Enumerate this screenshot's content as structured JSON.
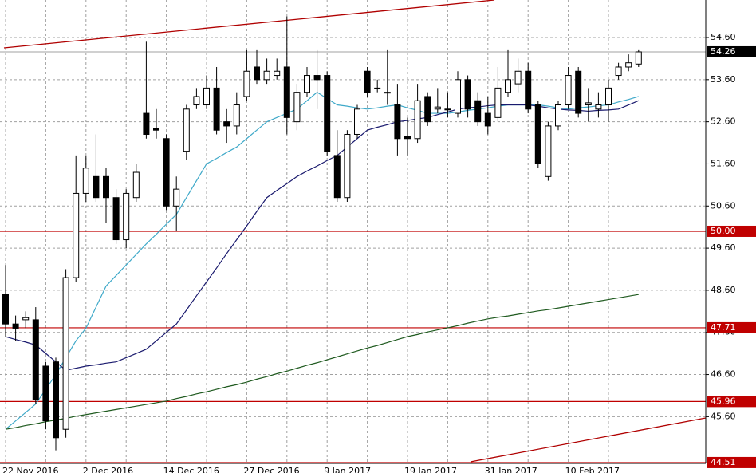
{
  "chart_data": {
    "type": "candlestick",
    "categories": [
      "22 Nov 2016",
      null,
      null,
      null,
      null,
      null,
      null,
      null,
      "2 Dec 2016",
      null,
      null,
      null,
      null,
      null,
      null,
      null,
      "14 Dec 2016",
      null,
      null,
      null,
      null,
      null,
      null,
      null,
      "27 Dec 2016",
      null,
      null,
      null,
      null,
      null,
      null,
      null,
      "9 Jan 2017",
      null,
      null,
      null,
      null,
      null,
      null,
      null,
      "19 Jan 2017",
      null,
      null,
      null,
      null,
      null,
      null,
      null,
      "31 Jan 2017",
      null,
      null,
      null,
      null,
      null,
      null,
      null,
      "10 Feb 2017",
      null,
      null,
      null,
      null,
      null,
      null,
      null
    ],
    "open": [
      48.5,
      47.8,
      47.9,
      47.9,
      46.8,
      46.9,
      45.3,
      48.9,
      50.9,
      51.3,
      51.3,
      50.8,
      49.8,
      50.8,
      52.8,
      52.45,
      52.2,
      50.6,
      51.9,
      53.0,
      53.0,
      53.4,
      52.6,
      52.5,
      53.2,
      53.9,
      53.6,
      53.7,
      53.9,
      52.6,
      53.3,
      53.7,
      53.7,
      51.8,
      50.8,
      52.3,
      53.8,
      53.4,
      53.3,
      53.0,
      52.25,
      52.2,
      53.2,
      52.9,
      52.9,
      52.8,
      53.6,
      53.1,
      52.8,
      52.7,
      53.3,
      53.5,
      53.8,
      53.0,
      51.3,
      52.5,
      53.0,
      53.8,
      53.0,
      52.9,
      53.0,
      53.7,
      53.9,
      53.97
    ],
    "high": [
      49.2,
      48.0,
      48.1,
      48.2,
      46.9,
      47.0,
      49.1,
      51.8,
      51.8,
      52.3,
      51.5,
      51.0,
      51.0,
      51.6,
      54.5,
      52.9,
      52.3,
      51.3,
      53.0,
      53.4,
      53.7,
      53.9,
      52.9,
      53.3,
      54.3,
      54.3,
      54.1,
      54.1,
      55.1,
      53.5,
      53.9,
      54.3,
      53.8,
      52.4,
      52.4,
      53.0,
      53.9,
      53.6,
      54.3,
      53.5,
      52.7,
      53.5,
      53.3,
      53.4,
      53.3,
      53.8,
      53.7,
      53.3,
      53.2,
      53.9,
      54.3,
      54.1,
      54.0,
      53.1,
      52.6,
      53.1,
      53.9,
      53.9,
      53.4,
      53.3,
      53.6,
      54.0,
      54.2,
      54.3
    ],
    "low": [
      47.5,
      47.4,
      47.7,
      45.9,
      45.3,
      44.8,
      45.1,
      48.8,
      50.7,
      50.7,
      50.2,
      49.7,
      49.6,
      50.7,
      52.2,
      52.2,
      50.5,
      50.0,
      51.7,
      52.9,
      52.9,
      52.3,
      52.1,
      52.3,
      53.1,
      53.5,
      53.5,
      53.6,
      52.3,
      52.4,
      53.2,
      52.9,
      51.8,
      50.7,
      50.7,
      52.2,
      53.2,
      53.3,
      53.0,
      51.8,
      51.8,
      52.1,
      52.5,
      52.8,
      52.7,
      52.7,
      52.7,
      52.5,
      52.3,
      52.6,
      53.2,
      53.3,
      52.8,
      51.5,
      51.2,
      52.4,
      52.9,
      52.7,
      52.6,
      52.7,
      52.6,
      53.6,
      53.8,
      53.9
    ],
    "close": [
      47.8,
      47.7,
      47.95,
      46.0,
      45.5,
      45.1,
      48.9,
      50.9,
      51.5,
      50.8,
      50.8,
      49.8,
      50.9,
      51.4,
      52.3,
      52.4,
      50.6,
      51.0,
      52.9,
      53.2,
      53.4,
      52.4,
      52.5,
      53.0,
      53.8,
      53.6,
      53.8,
      53.8,
      52.7,
      53.3,
      53.7,
      53.6,
      51.9,
      50.8,
      52.3,
      52.9,
      53.3,
      53.4,
      53.3,
      52.2,
      52.2,
      53.1,
      52.6,
      52.95,
      52.9,
      53.6,
      52.9,
      52.6,
      52.5,
      53.4,
      53.6,
      53.8,
      52.9,
      51.6,
      52.5,
      53.0,
      53.7,
      52.8,
      53.05,
      53.0,
      53.4,
      53.9,
      54.0,
      54.26
    ],
    "moving_averages": [
      {
        "color": "#3fa9c9",
        "values": [
          45.3,
          45.5,
          45.7,
          45.9,
          46.25,
          46.6,
          47.0,
          47.4,
          47.7,
          48.2,
          48.7,
          48.95,
          49.2,
          49.45,
          49.7,
          49.93,
          50.17,
          50.4,
          50.8,
          51.2,
          51.6,
          51.73,
          51.87,
          52.0,
          52.2,
          52.4,
          52.6,
          52.7,
          52.8,
          52.9,
          53.1,
          53.3,
          53.15,
          53.0,
          52.97,
          52.93,
          52.9,
          52.93,
          52.97,
          53.0,
          52.93,
          52.87,
          52.8,
          52.8,
          52.8,
          52.83,
          52.87,
          52.9,
          52.93,
          52.97,
          53.0,
          53.0,
          53.0,
          53.0,
          52.97,
          52.93,
          52.9,
          52.93,
          52.95,
          52.98,
          53.0,
          53.07,
          53.13,
          53.2
        ]
      },
      {
        "color": "#1a1a6e",
        "values": [
          47.5,
          47.43,
          47.37,
          47.3,
          47.1,
          46.9,
          46.7,
          46.75,
          46.8,
          46.83,
          46.87,
          46.9,
          47.0,
          47.1,
          47.2,
          47.4,
          47.6,
          47.8,
          48.13,
          48.47,
          48.8,
          49.13,
          49.47,
          49.8,
          50.13,
          50.47,
          50.8,
          50.97,
          51.13,
          51.3,
          51.43,
          51.55,
          51.68,
          51.8,
          52.0,
          52.2,
          52.4,
          52.47,
          52.53,
          52.6,
          52.63,
          52.67,
          52.7,
          52.77,
          52.83,
          52.9,
          52.93,
          52.95,
          52.98,
          53.0,
          53.0,
          53.0,
          53.0,
          52.97,
          52.93,
          52.9,
          52.88,
          52.87,
          52.85,
          52.87,
          52.88,
          52.9,
          53.0,
          53.1
        ]
      },
      {
        "color": "#1f5a1f",
        "values": [
          45.3,
          45.34,
          45.39,
          45.43,
          45.48,
          45.52,
          45.56,
          45.61,
          45.65,
          45.69,
          45.73,
          45.77,
          45.81,
          45.85,
          45.89,
          45.93,
          45.97,
          46.03,
          46.08,
          46.14,
          46.19,
          46.25,
          46.31,
          46.36,
          46.42,
          46.49,
          46.55,
          46.62,
          46.68,
          46.75,
          46.82,
          46.88,
          46.95,
          47.02,
          47.09,
          47.16,
          47.23,
          47.29,
          47.36,
          47.43,
          47.5,
          47.55,
          47.61,
          47.66,
          47.71,
          47.76,
          47.82,
          47.87,
          47.92,
          47.96,
          47.99,
          48.03,
          48.07,
          48.11,
          48.14,
          48.18,
          48.22,
          48.26,
          48.3,
          48.34,
          48.38,
          48.42,
          48.46,
          48.5
        ]
      }
    ],
    "ylim": [
      44.49,
      55.49
    ],
    "yticks": [
      {
        "value": 45.6,
        "label": "45.60"
      },
      {
        "value": 46.6,
        "label": "46.60"
      },
      {
        "value": 47.6,
        "label": "47.60"
      },
      {
        "value": 48.6,
        "label": "48.60"
      },
      {
        "value": 49.6,
        "label": "49.60"
      },
      {
        "value": 50.6,
        "label": "50.60"
      },
      {
        "value": 51.6,
        "label": "51.60"
      },
      {
        "value": 52.6,
        "label": "52.60"
      },
      {
        "value": 53.6,
        "label": "53.60"
      },
      {
        "value": 54.6,
        "label": "54.60"
      }
    ],
    "levels": [
      {
        "value": 50.0,
        "label": "50.00"
      },
      {
        "value": 47.71,
        "label": "47.71"
      },
      {
        "value": 45.96,
        "label": "45.96"
      },
      {
        "value": 44.51,
        "label": "44.51"
      }
    ],
    "level_color": "#c00000",
    "current_price": {
      "value": 54.26,
      "label": "54.26"
    },
    "grid": true
  }
}
